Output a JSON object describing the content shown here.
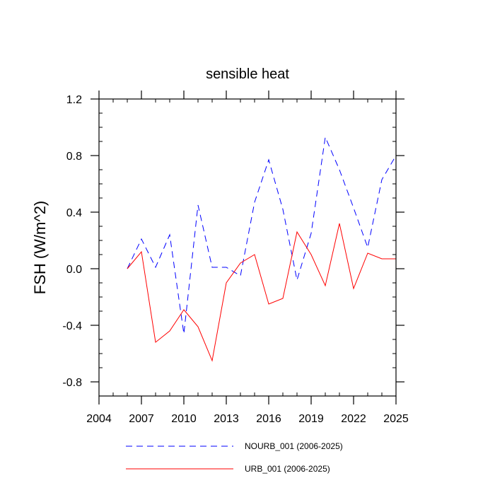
{
  "chart_data": {
    "type": "line",
    "title": "sensible heat",
    "xlabel": "",
    "ylabel": "FSH  (W/m^2)",
    "xlim": [
      2004,
      2025
    ],
    "ylim": [
      -0.9,
      1.2
    ],
    "xticks": [
      2004,
      2007,
      2010,
      2013,
      2016,
      2019,
      2022,
      2025
    ],
    "xtick_labels": [
      "2004",
      "2007",
      "2010",
      "2013",
      "2016",
      "2019",
      "2022",
      "2025"
    ],
    "yticks": [
      -0.8,
      -0.4,
      0.0,
      0.4,
      0.8,
      1.2
    ],
    "ytick_labels": [
      "-0.8",
      "-0.4",
      "0.0",
      "0.4",
      "0.8",
      "1.2"
    ],
    "x_minor_step": 1,
    "y_minor_step": 0.1,
    "grid": false,
    "legend_position": "bottom",
    "x": [
      2006,
      2007,
      2008,
      2009,
      2010,
      2011,
      2012,
      2013,
      2014,
      2015,
      2016,
      2017,
      2018,
      2019,
      2020,
      2021,
      2022,
      2023,
      2024,
      2025
    ],
    "series": [
      {
        "name": "NOURB_001 (2006-2025)",
        "color": "#0000ff",
        "dash": "dashed",
        "values": [
          0.0,
          0.21,
          0.01,
          0.24,
          -0.46,
          0.45,
          0.01,
          0.01,
          -0.05,
          0.47,
          0.77,
          0.42,
          -0.08,
          0.25,
          0.93,
          0.7,
          0.43,
          0.15,
          0.63,
          0.8
        ]
      },
      {
        "name": "URB_001 (2006-2025)",
        "color": "#ff0000",
        "dash": "solid",
        "values": [
          0.0,
          0.12,
          -0.52,
          -0.44,
          -0.29,
          -0.41,
          -0.65,
          -0.1,
          0.04,
          0.1,
          -0.25,
          -0.21,
          0.26,
          0.1,
          -0.12,
          0.32,
          -0.14,
          0.11,
          0.07,
          0.07
        ]
      }
    ]
  }
}
